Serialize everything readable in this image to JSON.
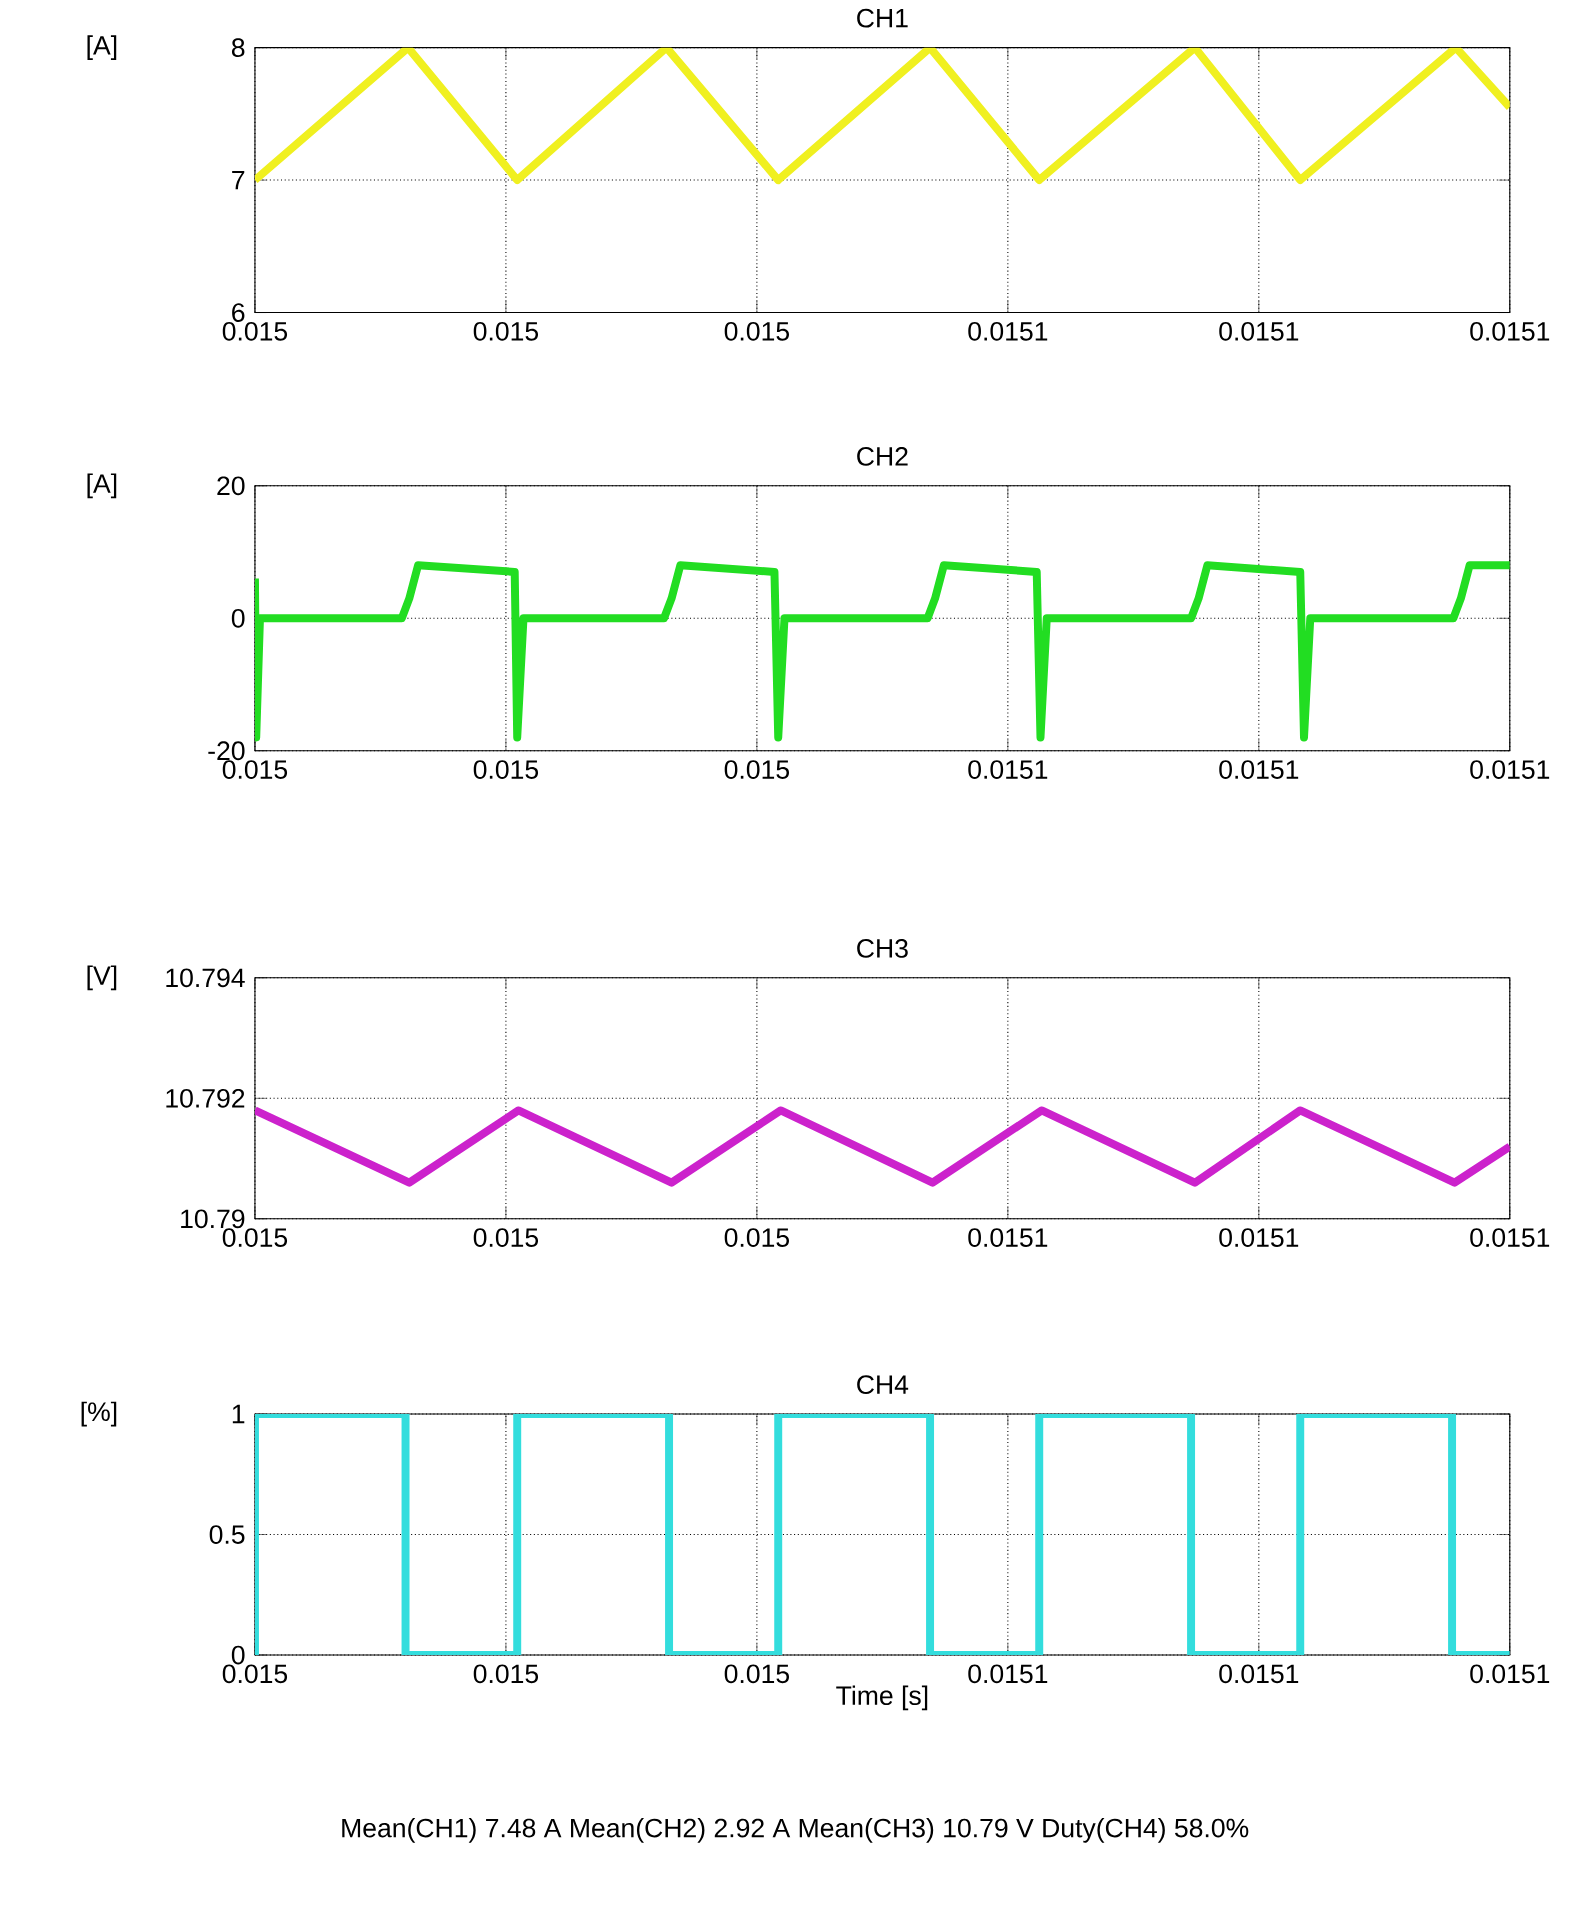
{
  "chart_data": [
    {
      "type": "line",
      "title": "CH1",
      "ylabel": "[A]",
      "grid": true,
      "line_style": "solid",
      "xlim": [
        0.015,
        0.0151
      ],
      "xticks": [
        {
          "value": 0.015,
          "label": "0.015"
        },
        {
          "value": 0.01502,
          "label": "0.015"
        },
        {
          "value": 0.01504,
          "label": "0.015"
        },
        {
          "value": 0.01506,
          "label": "0.0151"
        },
        {
          "value": 0.01508,
          "label": "0.0151"
        },
        {
          "value": 0.0151,
          "label": "0.0151"
        }
      ],
      "ylim": [
        6,
        8
      ],
      "yticks": [
        6,
        7,
        8
      ],
      "x": [
        0.015,
        0.0150122,
        0.0150209,
        0.0150328,
        0.0150417,
        0.0150538,
        0.0150625,
        0.0150749,
        0.0150833,
        0.0150957,
        0.0151
      ],
      "series": [
        {
          "color": "#f0f020",
          "values": [
            7.0,
            8.0,
            7.0,
            8.0,
            7.0,
            8.0,
            7.0,
            8.0,
            7.0,
            8.0,
            7.55
          ]
        }
      ]
    },
    {
      "type": "line",
      "title": "CH2",
      "ylabel": "[A]",
      "grid": true,
      "line_style": "solid",
      "xlim": [
        0.015,
        0.0151
      ],
      "xticks": [
        {
          "value": 0.015,
          "label": "0.015"
        },
        {
          "value": 0.01502,
          "label": "0.015"
        },
        {
          "value": 0.01504,
          "label": "0.015"
        },
        {
          "value": 0.01506,
          "label": "0.0151"
        },
        {
          "value": 0.01508,
          "label": "0.0151"
        },
        {
          "value": 0.0151,
          "label": "0.0151"
        }
      ],
      "ylim": [
        -20,
        20
      ],
      "yticks": [
        -20,
        0,
        20
      ],
      "x": [
        0.015,
        0.0150001,
        0.0150004,
        0.0150117,
        0.0150123,
        0.015013,
        0.0150207,
        0.0150209,
        0.0150214,
        0.0150326,
        0.0150332,
        0.0150339,
        0.0150414,
        0.0150417,
        0.0150422,
        0.0150536,
        0.0150542,
        0.0150549,
        0.0150623,
        0.0150626,
        0.0150631,
        0.0150746,
        0.0150752,
        0.0150759,
        0.0150833,
        0.0150836,
        0.0150841,
        0.0150955,
        0.0150961,
        0.0150968,
        0.0151
      ],
      "series": [
        {
          "color": "#22dd22",
          "values": [
            6,
            -18,
            0,
            0,
            3,
            8,
            7,
            -18,
            0,
            0,
            3,
            8,
            7,
            -18,
            0,
            0,
            3,
            8,
            7,
            -18,
            0,
            0,
            3,
            8,
            7,
            -18,
            0,
            0,
            3,
            8,
            8
          ]
        }
      ]
    },
    {
      "type": "line",
      "title": "CH3",
      "ylabel": "[V]",
      "grid": true,
      "line_style": "solid",
      "xlim": [
        0.015,
        0.0151
      ],
      "xticks": [
        {
          "value": 0.015,
          "label": "0.015"
        },
        {
          "value": 0.01502,
          "label": "0.015"
        },
        {
          "value": 0.01504,
          "label": "0.015"
        },
        {
          "value": 0.01506,
          "label": "0.0151"
        },
        {
          "value": 0.01508,
          "label": "0.0151"
        },
        {
          "value": 0.0151,
          "label": "0.0151"
        }
      ],
      "ylim": [
        10.79,
        10.794
      ],
      "yticks": [
        10.79,
        10.792,
        10.794
      ],
      "x": [
        0.015,
        0.0150123,
        0.015021,
        0.0150332,
        0.0150419,
        0.015054,
        0.0150627,
        0.0150749,
        0.0150833,
        0.0150956,
        0.0151
      ],
      "series": [
        {
          "color": "#cc22cc",
          "values": [
            10.7918,
            10.7906,
            10.7918,
            10.7906,
            10.7918,
            10.7906,
            10.7918,
            10.7906,
            10.7918,
            10.7906,
            10.7912
          ]
        }
      ]
    },
    {
      "type": "line",
      "title": "CH4",
      "ylabel": "[%]",
      "xlabel": "Time [s]",
      "grid": true,
      "line_style": "solid",
      "xlim": [
        0.015,
        0.0151
      ],
      "xticks": [
        {
          "value": 0.015,
          "label": "0.015"
        },
        {
          "value": 0.01502,
          "label": "0.015"
        },
        {
          "value": 0.01504,
          "label": "0.015"
        },
        {
          "value": 0.01506,
          "label": "0.0151"
        },
        {
          "value": 0.01508,
          "label": "0.0151"
        },
        {
          "value": 0.0151,
          "label": "0.0151"
        }
      ],
      "ylim": [
        0,
        1
      ],
      "yticks": [
        0,
        0.5,
        1
      ],
      "x": [
        0.015,
        0.015,
        0.015012,
        0.015012,
        0.0150209,
        0.0150209,
        0.015033,
        0.015033,
        0.0150417,
        0.0150417,
        0.0150538,
        0.0150538,
        0.0150625,
        0.0150625,
        0.0150746,
        0.0150746,
        0.0150833,
        0.0150833,
        0.0150954,
        0.0150954,
        0.0151
      ],
      "series": [
        {
          "color": "#33dddd",
          "values": [
            0,
            1,
            1,
            0,
            0,
            1,
            1,
            0,
            0,
            1,
            1,
            0,
            0,
            1,
            1,
            0,
            0,
            1,
            1,
            0,
            0
          ]
        }
      ],
      "annotations": [
        "Mean(CH1)  7.48 A   Mean(CH2)  2.92 A   Mean(CH3)  10.79 V   Duty(CH4) 58.0%"
      ]
    }
  ]
}
